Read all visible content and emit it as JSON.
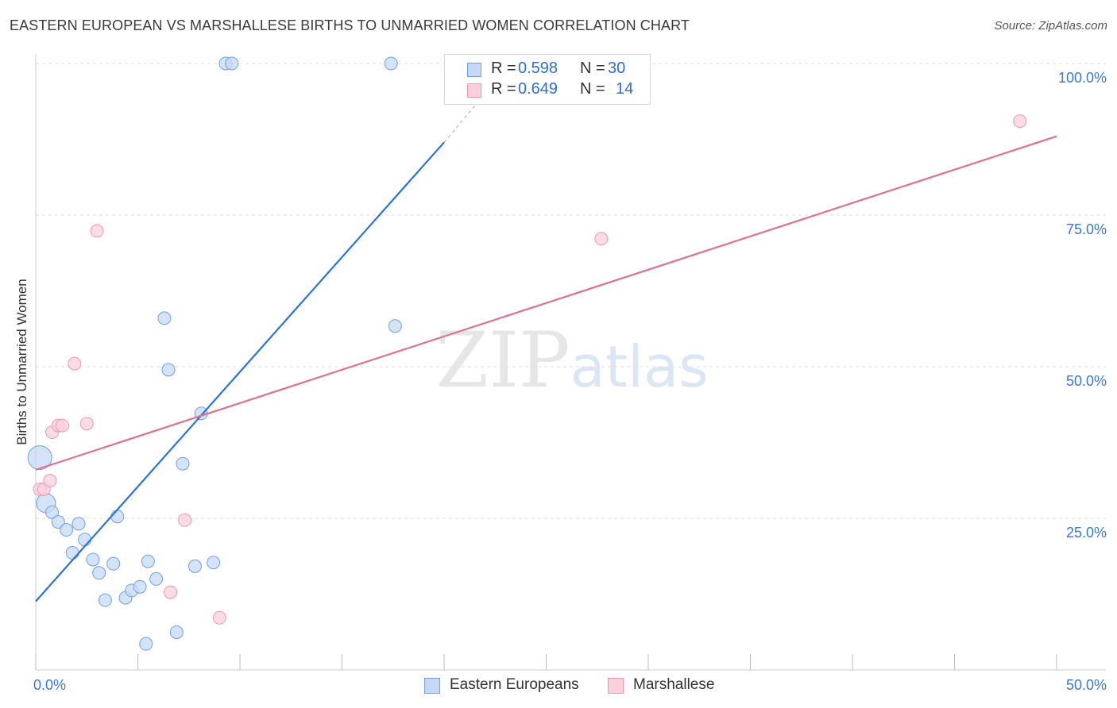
{
  "chart_data": {
    "type": "scatter",
    "title": "EASTERN EUROPEAN VS MARSHALLESE BIRTHS TO UNMARRIED WOMEN CORRELATION CHART",
    "source": "Source: ZipAtlas.com",
    "xlabel": "",
    "ylabel": "Births to Unmarried Women",
    "xlim": [
      0,
      50
    ],
    "ylim": [
      0,
      100
    ],
    "x_tick_labels": [
      "0.0%",
      "50.0%"
    ],
    "y_ticks": [
      25,
      50,
      75,
      100
    ],
    "y_tick_labels": [
      "25.0%",
      "50.0%",
      "75.0%",
      "100.0%"
    ],
    "grid": true,
    "watermark": "ZIPatlas",
    "colors": {
      "eastern": "#6fa0e6",
      "eastern_fill": "#c5d9f6",
      "eastern_line": "#2a72d4",
      "marshallese": "#ee96b4",
      "marshallese_fill": "#fad0dd",
      "marshallese_line": "#e0708f"
    },
    "legend": {
      "position": "top-center",
      "rows": [
        {
          "series": "Eastern Europeans",
          "r_label": "R =",
          "r_value": "0.598",
          "n_label": "N =",
          "n_value": "30"
        },
        {
          "series": "Marshallese",
          "r_label": "R =",
          "r_value": "0.649",
          "n_label": "N =",
          "n_value": "14"
        }
      ]
    },
    "series": [
      {
        "name": "Eastern Europeans",
        "points": [
          {
            "x": 0.2,
            "y": 35.0,
            "size": "large"
          },
          {
            "x": 0.5,
            "y": 27.5,
            "size": "large"
          },
          {
            "x": 0.8,
            "y": 26.0
          },
          {
            "x": 1.1,
            "y": 24.4
          },
          {
            "x": 1.5,
            "y": 23.1
          },
          {
            "x": 2.1,
            "y": 24.1
          },
          {
            "x": 1.8,
            "y": 19.3
          },
          {
            "x": 2.4,
            "y": 21.5
          },
          {
            "x": 2.8,
            "y": 18.2
          },
          {
            "x": 3.1,
            "y": 16.0
          },
          {
            "x": 3.4,
            "y": 11.5
          },
          {
            "x": 3.8,
            "y": 17.5
          },
          {
            "x": 4.4,
            "y": 11.9
          },
          {
            "x": 4.7,
            "y": 13.1
          },
          {
            "x": 5.1,
            "y": 13.7
          },
          {
            "x": 5.4,
            "y": 4.3
          },
          {
            "x": 5.5,
            "y": 17.9
          },
          {
            "x": 5.9,
            "y": 15.0
          },
          {
            "x": 6.3,
            "y": 58.0
          },
          {
            "x": 6.5,
            "y": 49.5
          },
          {
            "x": 6.9,
            "y": 6.2
          },
          {
            "x": 7.2,
            "y": 34.0
          },
          {
            "x": 7.8,
            "y": 17.1
          },
          {
            "x": 8.1,
            "y": 42.3
          },
          {
            "x": 8.7,
            "y": 17.7
          },
          {
            "x": 9.3,
            "y": 100.0
          },
          {
            "x": 9.6,
            "y": 100.0
          },
          {
            "x": 17.4,
            "y": 100.0
          },
          {
            "x": 17.6,
            "y": 56.7
          },
          {
            "x": 4.0,
            "y": 25.3
          }
        ],
        "trend": {
          "x0": 0,
          "y0": 11.3,
          "x1": 20,
          "y1": 87.0,
          "dash_x1": 21.5,
          "dash_y1": 93.0
        }
      },
      {
        "name": "Marshallese",
        "points": [
          {
            "x": 0.2,
            "y": 29.8
          },
          {
            "x": 0.4,
            "y": 29.8
          },
          {
            "x": 0.7,
            "y": 31.2
          },
          {
            "x": 0.8,
            "y": 39.2
          },
          {
            "x": 1.1,
            "y": 40.3
          },
          {
            "x": 1.3,
            "y": 40.3
          },
          {
            "x": 1.9,
            "y": 50.5
          },
          {
            "x": 2.5,
            "y": 40.6
          },
          {
            "x": 3.0,
            "y": 72.4
          },
          {
            "x": 6.6,
            "y": 12.8
          },
          {
            "x": 7.3,
            "y": 24.7
          },
          {
            "x": 9.0,
            "y": 8.6
          },
          {
            "x": 27.7,
            "y": 71.1
          },
          {
            "x": 48.2,
            "y": 90.5
          }
        ],
        "trend": {
          "x0": 0,
          "y0": 33.0,
          "x1": 50,
          "y1": 88.0
        }
      }
    ]
  }
}
